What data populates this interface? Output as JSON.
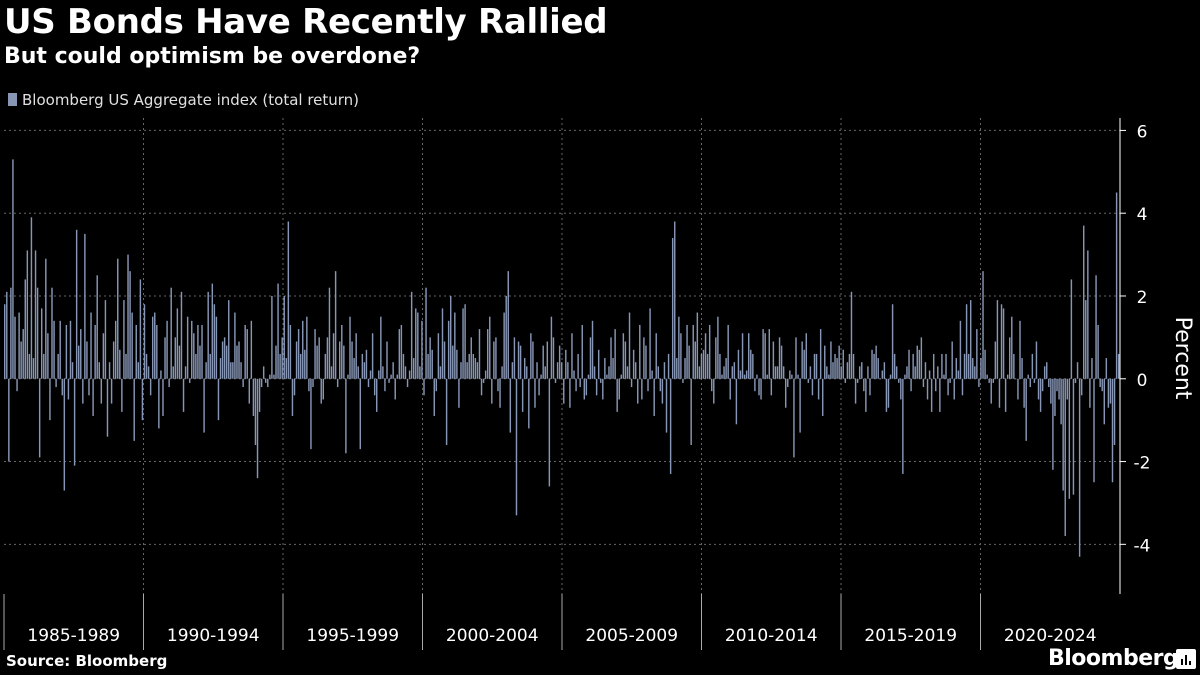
{
  "chart_data": {
    "type": "bar",
    "title": "US Bonds Have Recently Rallied",
    "subtitle": "But could optimism be overdone?",
    "series": [
      {
        "name": "Bloomberg US Aggregate index (total return)",
        "color": "#8796b5",
        "x_start": 1984.0,
        "frequency": "monthly",
        "values": [
          1.8,
          2.1,
          -2.0,
          2.2,
          5.3,
          1.5,
          -0.3,
          1.6,
          0.9,
          1.2,
          2.4,
          3.1,
          0.6,
          3.9,
          0.5,
          3.1,
          2.2,
          -1.9,
          1.7,
          0.6,
          2.9,
          1.1,
          -1.0,
          2.2,
          1.4,
          -0.2,
          0.6,
          1.4,
          -0.4,
          -2.7,
          1.3,
          -0.5,
          1.4,
          0.4,
          -2.1,
          3.6,
          0.8,
          1.2,
          -0.6,
          3.5,
          0.9,
          -0.4,
          1.6,
          -0.9,
          1.3,
          2.5,
          0.4,
          -0.6,
          1.1,
          1.9,
          -1.4,
          0.4,
          -0.6,
          0.9,
          1.4,
          2.9,
          0.7,
          -0.8,
          1.9,
          0.6,
          3.0,
          2.6,
          1.6,
          -1.5,
          1.3,
          0.4,
          2.4,
          -1.0,
          1.8,
          0.6,
          0.3,
          -0.4,
          1.5,
          1.6,
          1.3,
          -1.2,
          0.2,
          -0.9,
          1.0,
          1.4,
          -0.2,
          2.2,
          0.3,
          1.0,
          1.7,
          0.8,
          2.1,
          -0.8,
          0.3,
          1.5,
          -0.1,
          1.4,
          1.1,
          0.6,
          1.3,
          0.8,
          1.3,
          -1.3,
          0.4,
          2.1,
          0.6,
          2.3,
          1.8,
          1.5,
          -1.0,
          0.5,
          0.9,
          1.0,
          0.8,
          1.9,
          0.4,
          0.4,
          1.6,
          0.8,
          0.9,
          0.4,
          -0.2,
          1.3,
          1.2,
          -0.6,
          1.4,
          -0.9,
          -1.6,
          -2.4,
          -0.8,
          -0.2,
          0.3,
          -0.1,
          -0.2,
          0.1,
          2.0,
          0.1,
          0.8,
          2.3,
          0.6,
          1.0,
          2.0,
          0.5,
          3.8,
          1.3,
          -0.9,
          -0.4,
          0.9,
          1.2,
          0.6,
          1.4,
          0.7,
          1.5,
          -0.3,
          -1.7,
          -0.2,
          1.2,
          0.8,
          1.0,
          -0.6,
          -0.5,
          0.6,
          1.0,
          2.2,
          0.3,
          1.1,
          2.6,
          -0.2,
          0.9,
          1.3,
          0.8,
          -1.8,
          0.1,
          1.5,
          0.9,
          0.5,
          1.1,
          0.3,
          -1.7,
          0.6,
          0.4,
          0.7,
          -0.2,
          0.2,
          1.1,
          -0.4,
          -0.8,
          0.2,
          1.5,
          0.3,
          -0.3,
          0.9,
          -0.1,
          0.1,
          0.4,
          -0.5,
          0.1,
          1.2,
          1.3,
          0.6,
          0.3,
          -0.2,
          0.2,
          2.1,
          0.5,
          1.7,
          1.6,
          0.3,
          1.4,
          -0.4,
          2.2,
          0.6,
          1.0,
          0.7,
          -0.9,
          -0.3,
          1.1,
          0.3,
          1.7,
          0.9,
          -1.6,
          1.4,
          2.0,
          0.8,
          1.6,
          0.7,
          -0.7,
          0.4,
          1.7,
          1.8,
          0.4,
          0.6,
          1.0,
          0.6,
          0.5,
          0.4,
          1.2,
          -0.4,
          -0.1,
          0.2,
          1.2,
          1.5,
          -0.6,
          0.9,
          1.0,
          -0.3,
          -0.7,
          0.3,
          1.6,
          2.0,
          2.6,
          -1.3,
          0.4,
          1.0,
          -3.3,
          0.9,
          0.8,
          -0.8,
          0.5,
          0.3,
          -1.2,
          1.1,
          0.9,
          -0.7,
          0.4,
          -0.4,
          0.1,
          0.8,
          0.3,
          0.9,
          -2.6,
          1.5,
          1.0,
          -0.1,
          0.4,
          0.8,
          0.4,
          -0.6,
          0.7,
          0.4,
          -0.7,
          1.1,
          0.2,
          -0.3,
          0.6,
          -0.2,
          1.3,
          -0.5,
          -0.4,
          0.1,
          1.0,
          1.4,
          0.3,
          -0.4,
          0.7,
          -0.1,
          -0.5,
          0.5,
          0.1,
          0.3,
          1.0,
          0.5,
          1.2,
          -0.8,
          -0.5,
          0.1,
          1.1,
          0.9,
          0.3,
          1.6,
          -0.2,
          0.7,
          0.4,
          -0.6,
          1.3,
          -0.5,
          1.0,
          0.8,
          -0.3,
          1.7,
          0.2,
          -0.9,
          1.1,
          0.3,
          -0.3,
          -0.6,
          0.4,
          -1.3,
          0.6,
          -2.3,
          3.4,
          3.8,
          0.5,
          1.5,
          1.1,
          -0.1,
          0.5,
          1.3,
          0.8,
          -1.6,
          1.3,
          0.9,
          1.6,
          0.3,
          0.6,
          0.7,
          1.1,
          0.6,
          1.3,
          -0.3,
          -0.6,
          1.0,
          1.5,
          0.6,
          0.1,
          0.3,
          0.5,
          1.3,
          -0.5,
          0.3,
          0.4,
          -1.1,
          0.7,
          0.2,
          1.1,
          0.1,
          0.2,
          1.1,
          0.7,
          0.6,
          -0.3,
          0.1,
          -0.4,
          -0.5,
          1.2,
          1.1,
          0.1,
          1.2,
          -0.4,
          0.9,
          0.3,
          0.3,
          1.0,
          0.8,
          0.3,
          -0.7,
          -0.2,
          0.2,
          0.1,
          -1.9,
          1.0,
          0.1,
          -1.3,
          0.9,
          0.7,
          1.1,
          -0.1,
          0.3,
          -0.4,
          0.6,
          0.6,
          -0.5,
          1.2,
          -0.9,
          0.8,
          0.3,
          0.1,
          0.9,
          0.4,
          0.6,
          0.5,
          0.8,
          0.3,
          0.7,
          -0.1,
          0.4,
          0.6,
          2.1,
          0.6,
          -0.6,
          -0.1,
          0.3,
          0.4,
          -0.3,
          -0.8,
          0.3,
          -0.4,
          0.7,
          0.6,
          0.8,
          0.5,
          0.0,
          0.2,
          0.4,
          -0.8,
          -0.7,
          0.1,
          1.8,
          0.6,
          0.3,
          -0.1,
          -0.5,
          -2.3,
          0.1,
          0.3,
          0.7,
          -0.3,
          0.6,
          0.3,
          0.8,
          0.7,
          1.0,
          -0.2,
          0.4,
          -0.5,
          0.2,
          -0.8,
          0.6,
          -0.3,
          0.3,
          -0.8,
          0.6,
          0.1,
          0.6,
          -0.4,
          -0.1,
          0.9,
          -0.5,
          0.5,
          0.2,
          1.4,
          -0.4,
          0.6,
          1.8,
          0.6,
          1.9,
          0.5,
          0.3,
          1.2,
          -0.2,
          0.5,
          2.6,
          0.7,
          0.1,
          -0.1,
          -0.6,
          -0.1,
          0.9,
          1.9,
          -0.7,
          1.8,
          1.7,
          -0.8,
          0.1,
          1.0,
          1.5,
          0.6,
          0.0,
          -0.5,
          1.4,
          0.5,
          -0.7,
          -1.5,
          0.1,
          -0.2,
          0.6,
          -0.1,
          0.9,
          -0.5,
          -0.8,
          -0.3,
          0.3,
          0.4,
          -0.2,
          -0.6,
          -2.2,
          -0.9,
          -0.3,
          -0.5,
          -1.1,
          -2.7,
          -3.8,
          -0.5,
          -2.9,
          2.4,
          -2.8,
          -0.1,
          0.4,
          -4.3,
          -0.4,
          3.7,
          1.9,
          3.1,
          -0.7,
          0.5,
          -2.5,
          2.5,
          1.3,
          -0.2,
          -0.3,
          -1.1,
          0.5,
          -0.7,
          -0.6,
          -2.5,
          -1.6,
          4.5,
          0.6
        ]
      }
    ],
    "x_ticks": [
      {
        "label": "1985-1989",
        "start": 1984.0,
        "end": 1989.0
      },
      {
        "label": "1990-1994",
        "start": 1989.0,
        "end": 1994.0
      },
      {
        "label": "1995-1999",
        "start": 1994.0,
        "end": 1999.0
      },
      {
        "label": "2000-2004",
        "start": 1999.0,
        "end": 2004.0
      },
      {
        "label": "2005-2009",
        "start": 2004.0,
        "end": 2009.0
      },
      {
        "label": "2010-2014",
        "start": 2009.0,
        "end": 2014.0
      },
      {
        "label": "2015-2019",
        "start": 2014.0,
        "end": 2019.0
      },
      {
        "label": "2020-2024",
        "start": 2019.0,
        "end": 2024.0
      }
    ],
    "x_range": [
      1984.0,
      2024.0
    ],
    "ylabel": "Percent",
    "ylim": [
      -5.2,
      6.3
    ],
    "y_ticks": [
      6,
      4,
      2,
      0,
      -2,
      -4
    ],
    "y_tick_labels": [
      "6",
      "4",
      "2",
      "0",
      "-2",
      "-4"
    ],
    "grid": true,
    "legend_position": "top-left"
  },
  "footer": {
    "source": "Source: Bloomberg",
    "brand": "Bloomberg"
  },
  "colors": {
    "background": "#000000",
    "bar": "#8796b5",
    "grid": "#666666",
    "text": "#ffffff"
  }
}
